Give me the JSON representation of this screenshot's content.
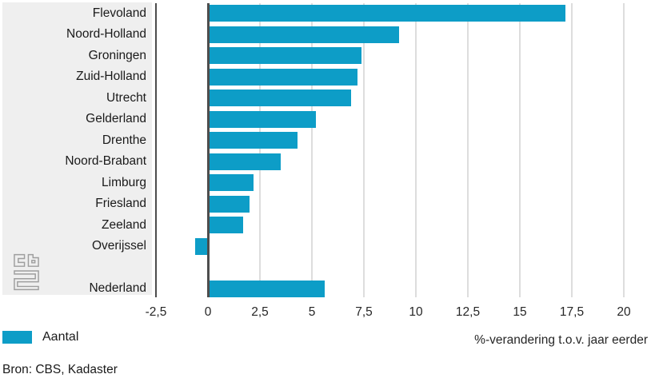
{
  "chart_data": {
    "type": "bar",
    "orientation": "horizontal",
    "title": "",
    "xlabel": "%-verandering t.o.v. jaar eerder",
    "ylabel": "",
    "xlim": [
      -2.5,
      20
    ],
    "grid": true,
    "legend_position": "bottom-left",
    "series_name": "Aantal",
    "categories": [
      "Flevoland",
      "Noord-Holland",
      "Groningen",
      "Zuid-Holland",
      "Utrecht",
      "Gelderland",
      "Drenthe",
      "Noord-Brabant",
      "Limburg",
      "Friesland",
      "Zeeland",
      "Overijssel",
      "",
      "Nederland"
    ],
    "values": [
      17.2,
      9.2,
      7.4,
      7.2,
      6.9,
      5.2,
      4.3,
      3.5,
      2.2,
      2.0,
      1.7,
      -0.6,
      null,
      5.6
    ],
    "x_ticks": [
      {
        "label": "-2,5",
        "value": -2.5
      },
      {
        "label": "0",
        "value": 0
      },
      {
        "label": "2,5",
        "value": 2.5
      },
      {
        "label": "5",
        "value": 5
      },
      {
        "label": "7,5",
        "value": 7.5
      },
      {
        "label": "10",
        "value": 10
      },
      {
        "label": "12,5",
        "value": 12.5
      },
      {
        "label": "15",
        "value": 15
      },
      {
        "label": "17,5",
        "value": 17.5
      },
      {
        "label": "20",
        "value": 20
      }
    ]
  },
  "legend": {
    "label": "Aantal",
    "color": "#0d9dc7"
  },
  "source_text": "Bron: CBS, Kadaster",
  "icons": {
    "logo": "cbs-logo"
  },
  "colors": {
    "bar": "#0d9dc7",
    "label_panel": "#efefef",
    "axis_line": "#4d4d4d",
    "gridline": "#dddddd",
    "text": "#1a1a1a",
    "logo": "#9e9e9e"
  }
}
